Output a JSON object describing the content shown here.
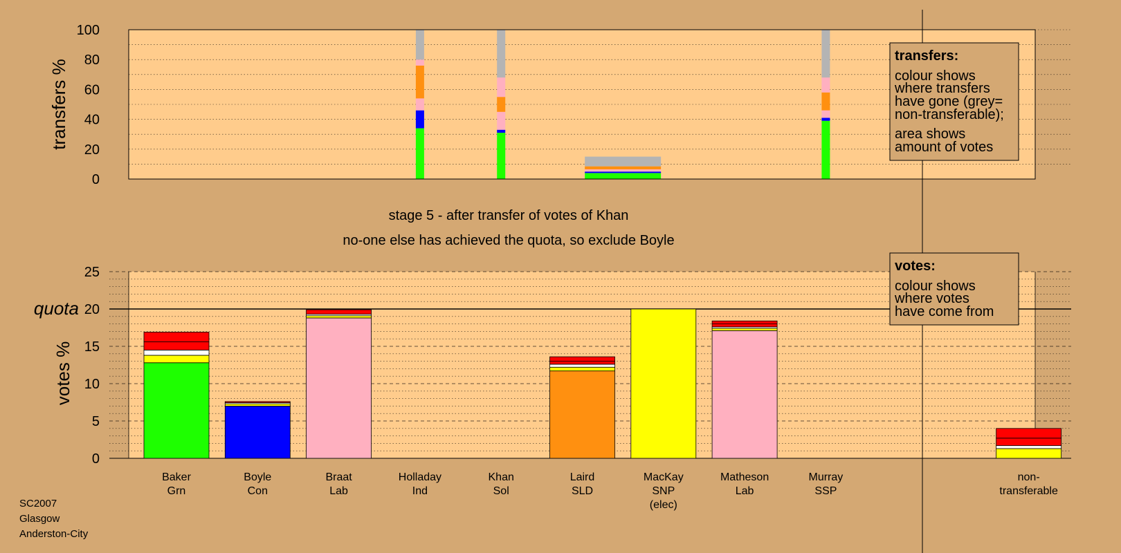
{
  "chart_data": [
    {
      "type": "bar",
      "name": "transfers",
      "ylabel": "transfers %",
      "ylim": [
        0,
        100
      ],
      "yticks": [
        0,
        20,
        40,
        60,
        80,
        100
      ],
      "bars": [
        {
          "position": 3,
          "width": "narrow",
          "segments": [
            {
              "color": "#1eff00",
              "value": 34
            },
            {
              "color": "#0000ff",
              "value": 12
            },
            {
              "color": "#ffb0c0",
              "value": 8
            },
            {
              "color": "#ff9010",
              "value": 22
            },
            {
              "color": "#ffb0c0",
              "value": 4
            },
            {
              "color": "#b4b4b4",
              "value": 20
            }
          ]
        },
        {
          "position": 4,
          "width": "narrow",
          "segments": [
            {
              "color": "#1eff00",
              "value": 31
            },
            {
              "color": "#0000ff",
              "value": 2
            },
            {
              "color": "#ffb0c0",
              "value": 12
            },
            {
              "color": "#ff9010",
              "value": 10
            },
            {
              "color": "#ffb0c0",
              "value": 13
            },
            {
              "color": "#b4b4b4",
              "value": 32
            }
          ]
        },
        {
          "position": 8,
          "width": "narrow",
          "segments": [
            {
              "color": "#1eff00",
              "value": 39
            },
            {
              "color": "#0000ff",
              "value": 2
            },
            {
              "color": "#ffb0c0",
              "value": 5
            },
            {
              "color": "#ff9010",
              "value": 12
            },
            {
              "color": "#ffb0c0",
              "value": 10
            },
            {
              "color": "#b4b4b4",
              "value": 32
            }
          ]
        },
        {
          "position": 5.5,
          "width": "wide",
          "segments": [
            {
              "color": "#1eff00",
              "value": 4
            },
            {
              "color": "#0000ff",
              "value": 1
            },
            {
              "color": "#ffb0c0",
              "value": 1.5
            },
            {
              "color": "#ff9010",
              "value": 2
            },
            {
              "color": "#b4b4b4",
              "value": 6.5
            }
          ]
        }
      ]
    },
    {
      "type": "bar",
      "name": "votes",
      "ylabel": "votes %",
      "ylim": [
        0,
        25
      ],
      "yticks": [
        0,
        5,
        10,
        15,
        20,
        25
      ],
      "quota": 20,
      "quota_label": "quota",
      "categories": [
        {
          "lines": [
            "Baker",
            "Grn"
          ]
        },
        {
          "lines": [
            "Boyle",
            "Con"
          ]
        },
        {
          "lines": [
            "Braat",
            "Lab"
          ]
        },
        {
          "lines": [
            "Holladay",
            "Ind"
          ]
        },
        {
          "lines": [
            "Khan",
            "Sol"
          ]
        },
        {
          "lines": [
            "Laird",
            "SLD"
          ]
        },
        {
          "lines": [
            "MacKay",
            "SNP",
            "(elec)"
          ]
        },
        {
          "lines": [
            "Matheson",
            "Lab"
          ]
        },
        {
          "lines": [
            "Murray",
            "SSP"
          ]
        },
        {
          "lines": [
            "non-",
            "transferable"
          ],
          "position": 10.5
        }
      ],
      "stacks": [
        [
          {
            "color": "#1eff00",
            "value": 12.8
          },
          {
            "color": "#ffff00",
            "value": 1.0
          },
          {
            "color": "#ffffff",
            "value": 0.7
          },
          {
            "color": "#ff0000",
            "value": 1.1
          },
          {
            "color": "#ff0000",
            "value": 1.3
          }
        ],
        [
          {
            "color": "#0000ff",
            "value": 7.0
          },
          {
            "color": "#ffff00",
            "value": 0.3
          },
          {
            "color": "#ffffff",
            "value": 0.15
          },
          {
            "color": "#ff0000",
            "value": 0.15
          }
        ],
        [
          {
            "color": "#ffb0c0",
            "value": 18.8
          },
          {
            "color": "#ffff00",
            "value": 0.3
          },
          {
            "color": "#ffffff",
            "value": 0.2
          },
          {
            "color": "#ff0000",
            "value": 0.6
          }
        ],
        [],
        [],
        [
          {
            "color": "#ff9010",
            "value": 11.7
          },
          {
            "color": "#ffff00",
            "value": 0.5
          },
          {
            "color": "#ffffff",
            "value": 0.4
          },
          {
            "color": "#ff0000",
            "value": 0.4
          },
          {
            "color": "#ff0000",
            "value": 0.6
          }
        ],
        [
          {
            "color": "#ffff00",
            "value": 20.0
          }
        ],
        [
          {
            "color": "#ffb0c0",
            "value": 17.1
          },
          {
            "color": "#ffff00",
            "value": 0.3
          },
          {
            "color": "#ffffff",
            "value": 0.2
          },
          {
            "color": "#ff0000",
            "value": 0.4
          },
          {
            "color": "#ff0000",
            "value": 0.4
          }
        ],
        [],
        [
          {
            "color": "#ffff00",
            "value": 1.3
          },
          {
            "color": "#ffffff",
            "value": 0.4
          },
          {
            "color": "#ff0000",
            "value": 1.0
          },
          {
            "color": "#ff0000",
            "value": 1.3
          }
        ]
      ]
    }
  ],
  "captions": {
    "line1": "stage 5 - after transfer of votes of Khan",
    "line2": "no-one else has achieved the quota, so exclude Boyle"
  },
  "legend_transfers": {
    "title": "transfers:",
    "lines": [
      "colour shows",
      "where transfers",
      "have gone (grey=",
      "non-transferable);",
      "area shows",
      "amount of votes"
    ]
  },
  "legend_votes": {
    "title": "votes:",
    "lines": [
      "colour shows",
      "where votes",
      "have come from"
    ]
  },
  "footer": [
    "SC2007",
    "Glasgow",
    "Anderston-City"
  ],
  "colors": {
    "background": "#d4a873",
    "plot_background": "#ffcc8c",
    "legend_background": "#d4a873"
  }
}
